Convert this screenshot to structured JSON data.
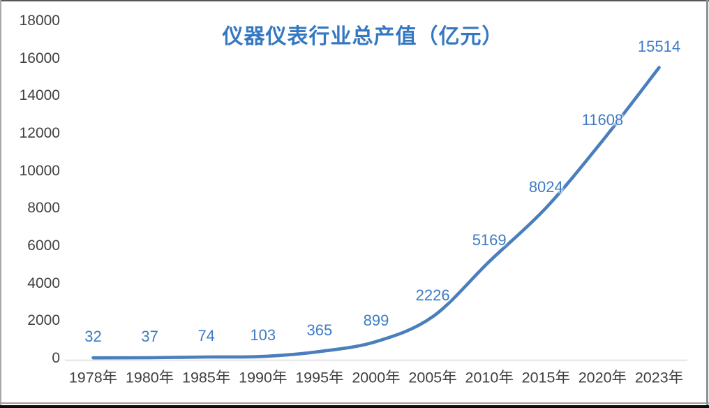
{
  "chart_data": {
    "type": "line",
    "title": "仪器仪表行业总产值（亿元）",
    "categories": [
      "1978年",
      "1980年",
      "1985年",
      "1990年",
      "1995年",
      "2000年",
      "2005年",
      "2010年",
      "2015年",
      "2020年",
      "2023年"
    ],
    "series": [
      {
        "name": "仪器仪表行业总产值",
        "values": [
          32,
          37,
          74,
          103,
          365,
          899,
          2226,
          5169,
          8024,
          11608,
          15514
        ]
      }
    ],
    "data_labels": [
      "32",
      "37",
      "74",
      "103",
      "365",
      "899",
      "2226",
      "5169",
      "8024",
      "11608",
      "15514"
    ],
    "y_ticks": [
      0,
      2000,
      4000,
      6000,
      8000,
      10000,
      12000,
      14000,
      16000,
      18000
    ],
    "ylim": [
      0,
      18000
    ],
    "xlabel": "",
    "ylabel": "",
    "grid": false,
    "legend": "none",
    "smooth": true,
    "colors": {
      "line": "#4A7EBC",
      "data_label": "#3E7BC4",
      "title": "#3578C2",
      "axis_label": "#404040",
      "axis_line": "#D9D9D9",
      "background": "#FFFFFF"
    }
  }
}
